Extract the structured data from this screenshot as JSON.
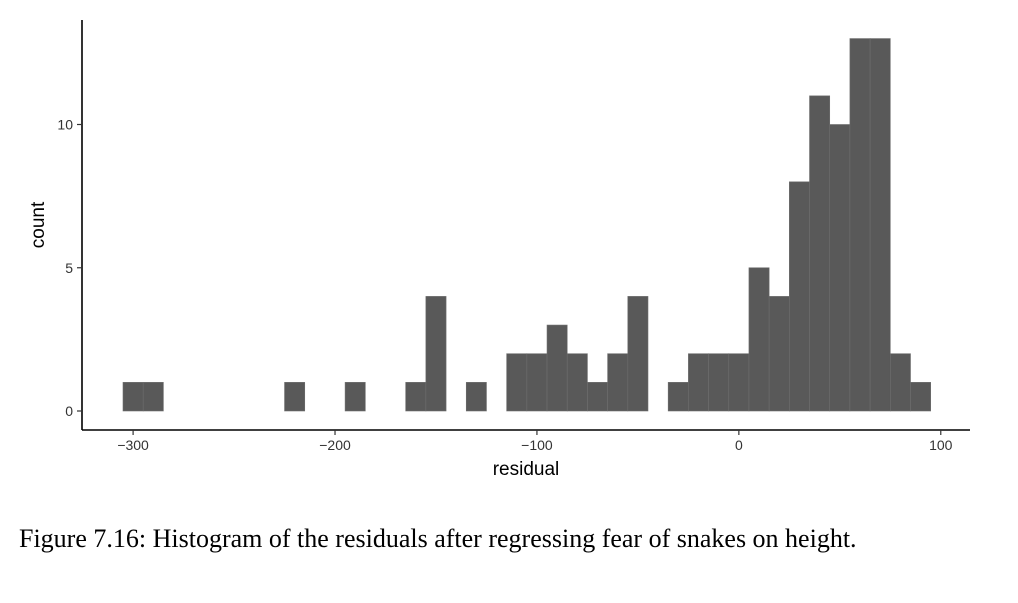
{
  "chart_data": {
    "type": "histogram",
    "xlabel": "residual",
    "ylabel": "count",
    "xlim": [
      -305,
      115
    ],
    "ylim": [
      -0.5,
      13.5
    ],
    "bin_width": 10,
    "x_ticks": [
      -300,
      -200,
      -100,
      0,
      100
    ],
    "x_tick_labels": [
      "−300",
      "−200",
      "−100",
      "0",
      "100"
    ],
    "y_ticks": [
      0,
      5,
      10
    ],
    "y_tick_labels": [
      "0",
      "5",
      "10"
    ],
    "bar_color": "#595959",
    "grid": false,
    "bins": [
      {
        "x0": -305,
        "x1": -295,
        "count": 1
      },
      {
        "x0": -295,
        "x1": -285,
        "count": 1
      },
      {
        "x0": -225,
        "x1": -215,
        "count": 1
      },
      {
        "x0": -195,
        "x1": -185,
        "count": 1
      },
      {
        "x0": -165,
        "x1": -155,
        "count": 1
      },
      {
        "x0": -155,
        "x1": -145,
        "count": 4
      },
      {
        "x0": -135,
        "x1": -125,
        "count": 1
      },
      {
        "x0": -115,
        "x1": -105,
        "count": 2
      },
      {
        "x0": -105,
        "x1": -95,
        "count": 2
      },
      {
        "x0": -95,
        "x1": -85,
        "count": 3
      },
      {
        "x0": -85,
        "x1": -75,
        "count": 2
      },
      {
        "x0": -75,
        "x1": -65,
        "count": 1
      },
      {
        "x0": -65,
        "x1": -55,
        "count": 2
      },
      {
        "x0": -55,
        "x1": -45,
        "count": 4
      },
      {
        "x0": -35,
        "x1": -25,
        "count": 1
      },
      {
        "x0": -25,
        "x1": -15,
        "count": 2
      },
      {
        "x0": -15,
        "x1": -5,
        "count": 2
      },
      {
        "x0": -5,
        "x1": 5,
        "count": 2
      },
      {
        "x0": 5,
        "x1": 15,
        "count": 5
      },
      {
        "x0": 15,
        "x1": 25,
        "count": 4
      },
      {
        "x0": 25,
        "x1": 35,
        "count": 8
      },
      {
        "x0": 35,
        "x1": 45,
        "count": 11
      },
      {
        "x0": 45,
        "x1": 55,
        "count": 10
      },
      {
        "x0": 55,
        "x1": 65,
        "count": 13
      },
      {
        "x0": 65,
        "x1": 75,
        "count": 13
      },
      {
        "x0": 75,
        "x1": 85,
        "count": 2
      },
      {
        "x0": 85,
        "x1": 95,
        "count": 1
      }
    ]
  },
  "caption": "Figure 7.16: Histogram of the residuals after regressing fear of snakes on height."
}
